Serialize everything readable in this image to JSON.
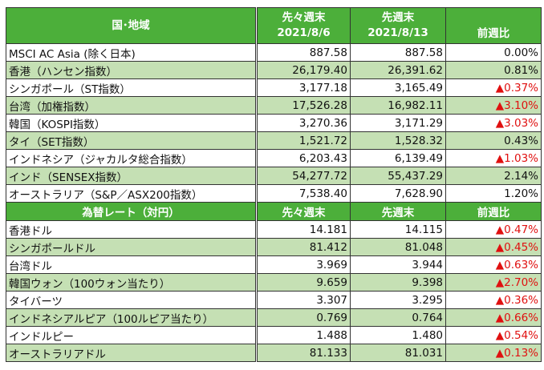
{
  "index_header": {
    "region": "国･地域",
    "prev2": "先々週末",
    "prev2_date": "2021/8/6",
    "prev1": "先週末",
    "prev1_date": "2021/8/13",
    "change": "前週比"
  },
  "index_rows": [
    {
      "name": "MSCI AC Asia (除く日本)",
      "prev2": "887.58",
      "prev1": "887.58",
      "change": "0.00%"
    },
    {
      "name": "香港（ハンセン指数）",
      "prev2": "26,179.40",
      "prev1": "26,391.62",
      "change": "0.81%"
    },
    {
      "name": "シンガポール（ST指数）",
      "prev2": "3,177.18",
      "prev1": "3,165.49",
      "change": "▲0.37%"
    },
    {
      "name": "台湾（加権指数）",
      "prev2": "17,526.28",
      "prev1": "16,982.11",
      "change": "▲3.10%"
    },
    {
      "name": "韓国（KOSPI指数）",
      "prev2": "3,270.36",
      "prev1": "3,171.29",
      "change": "▲3.03%"
    },
    {
      "name": "タイ（SET指数）",
      "prev2": "1,521.72",
      "prev1": "1,528.32",
      "change": "0.43%"
    },
    {
      "name": "インドネシア（ジャカルタ総合指数）",
      "prev2": "6,203.43",
      "prev1": "6,139.49",
      "change": "▲1.03%"
    },
    {
      "name": "インド（SENSEX指数）",
      "prev2": "54,277.72",
      "prev1": "55,437.29",
      "change": "2.14%"
    },
    {
      "name": "オーストラリア（S&P／ASX200指数）",
      "prev2": "7,538.40",
      "prev1": "7,628.90",
      "change": "1.20%"
    }
  ],
  "fx_header": {
    "label": "為替レート（対円）",
    "prev2": "先々週末",
    "prev1": "先週末",
    "change": "前週比"
  },
  "fx_rows": [
    {
      "name": "香港ドル",
      "prev2": "14.181",
      "prev1": "14.115",
      "change": "▲0.47%"
    },
    {
      "name": "シンガポールドル",
      "prev2": "81.412",
      "prev1": "81.048",
      "change": "▲0.45%"
    },
    {
      "name": "台湾ドル",
      "prev2": "3.969",
      "prev1": "3.944",
      "change": "▲0.63%"
    },
    {
      "name": "韓国ウォン（100ウォン当たり）",
      "prev2": "9.659",
      "prev1": "9.398",
      "change": "▲2.70%"
    },
    {
      "name": "タイバーツ",
      "prev2": "3.307",
      "prev1": "3.295",
      "change": "▲0.36%"
    },
    {
      "name": "インドネシアルピア（100ルピア当たり）",
      "prev2": "0.769",
      "prev1": "0.764",
      "change": "▲0.66%"
    },
    {
      "name": "インドルピー",
      "prev2": "1.488",
      "prev1": "1.480",
      "change": "▲0.54%"
    },
    {
      "name": "オーストラリアドル",
      "prev2": "81.133",
      "prev1": "81.031",
      "change": "▲0.13%"
    }
  ],
  "colors": {
    "header": "#4caf3a",
    "alt_row": "#c5e0b4",
    "negative": "#e01010"
  }
}
